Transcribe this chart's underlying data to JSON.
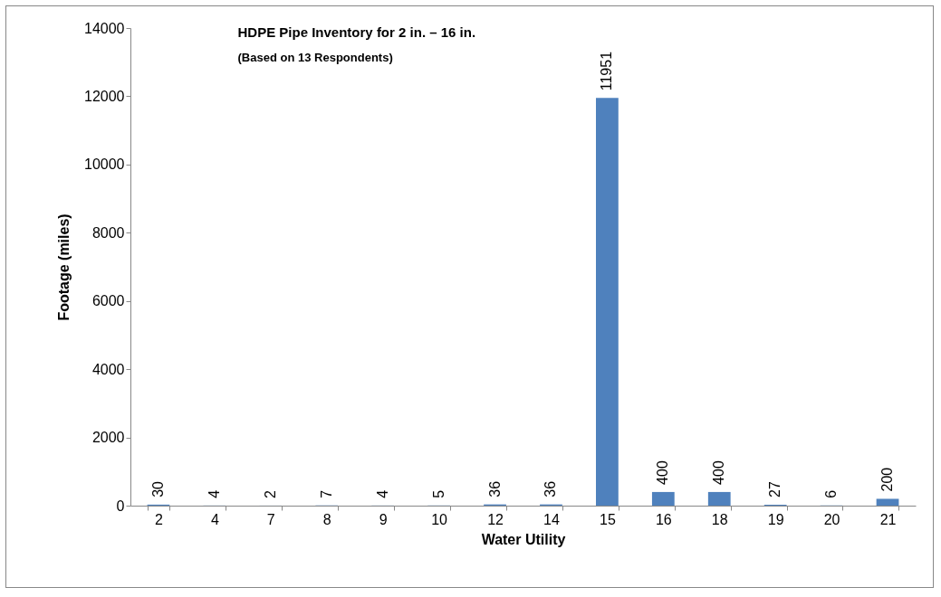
{
  "chart_data": {
    "type": "bar",
    "title": "HDPE Pipe  Inventory for 2 in. – 16 in.",
    "subtitle": "(Based on 13 Respondents)",
    "xlabel": "Water Utility",
    "ylabel": "Footage (miles)",
    "categories": [
      "2",
      "4",
      "7",
      "8",
      "9",
      "10",
      "12",
      "14",
      "15",
      "16",
      "18",
      "19",
      "20",
      "21"
    ],
    "values": [
      30,
      4,
      2,
      7,
      4,
      5,
      36,
      36,
      11951,
      400,
      400,
      27,
      6,
      200
    ],
    "color": "#4f81bd",
    "ylim": [
      0,
      14000
    ],
    "yticks": [
      0,
      2000,
      4000,
      6000,
      8000,
      10000,
      12000,
      14000
    ],
    "grid": false,
    "data_labels": true
  }
}
